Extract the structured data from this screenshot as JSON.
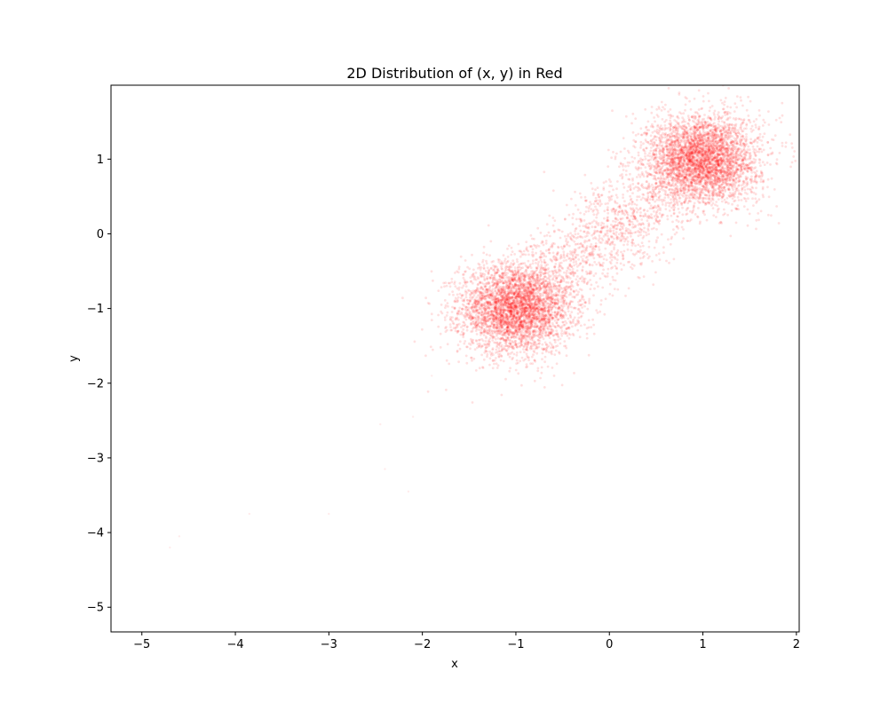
{
  "chart_data": {
    "type": "scatter",
    "title": "2D Distribution of (x, y) in Red",
    "xlabel": "x",
    "ylabel": "y",
    "xlim": [
      -5.33,
      2.03
    ],
    "ylim": [
      -5.33,
      1.99
    ],
    "xticks": [
      -5,
      -4,
      -3,
      -2,
      -1,
      0,
      1,
      2
    ],
    "yticks": [
      -5,
      -4,
      -3,
      -2,
      -1,
      0,
      1
    ],
    "xtick_labels": [
      "−5",
      "−4",
      "−3",
      "−2",
      "−1",
      "0",
      "1",
      "2"
    ],
    "ytick_labels": [
      "−5",
      "−4",
      "−3",
      "−2",
      "−1",
      "0",
      "1"
    ],
    "grid": false,
    "legend": "none",
    "point_color": "#ff0000",
    "clusters": [
      {
        "center": [
          -1.0,
          -1.0
        ],
        "std": [
          0.3,
          0.3
        ],
        "weight": 0.42
      },
      {
        "center": [
          1.0,
          1.0
        ],
        "std": [
          0.3,
          0.3
        ],
        "weight": 0.42
      },
      {
        "center": [
          0.0,
          0.0
        ],
        "std": [
          0.6,
          0.6
        ],
        "correlation": 0.8,
        "weight": 0.16
      }
    ],
    "outliers": [
      [
        -4.6,
        -4.05
      ],
      [
        -4.7,
        -4.2
      ],
      [
        -3.85,
        -3.75
      ],
      [
        -3.0,
        -3.75
      ],
      [
        -2.15,
        -3.45
      ],
      [
        -2.4,
        -3.15
      ],
      [
        -2.45,
        -2.55
      ],
      [
        -2.1,
        -2.45
      ],
      [
        -1.9,
        -1.9
      ]
    ]
  }
}
